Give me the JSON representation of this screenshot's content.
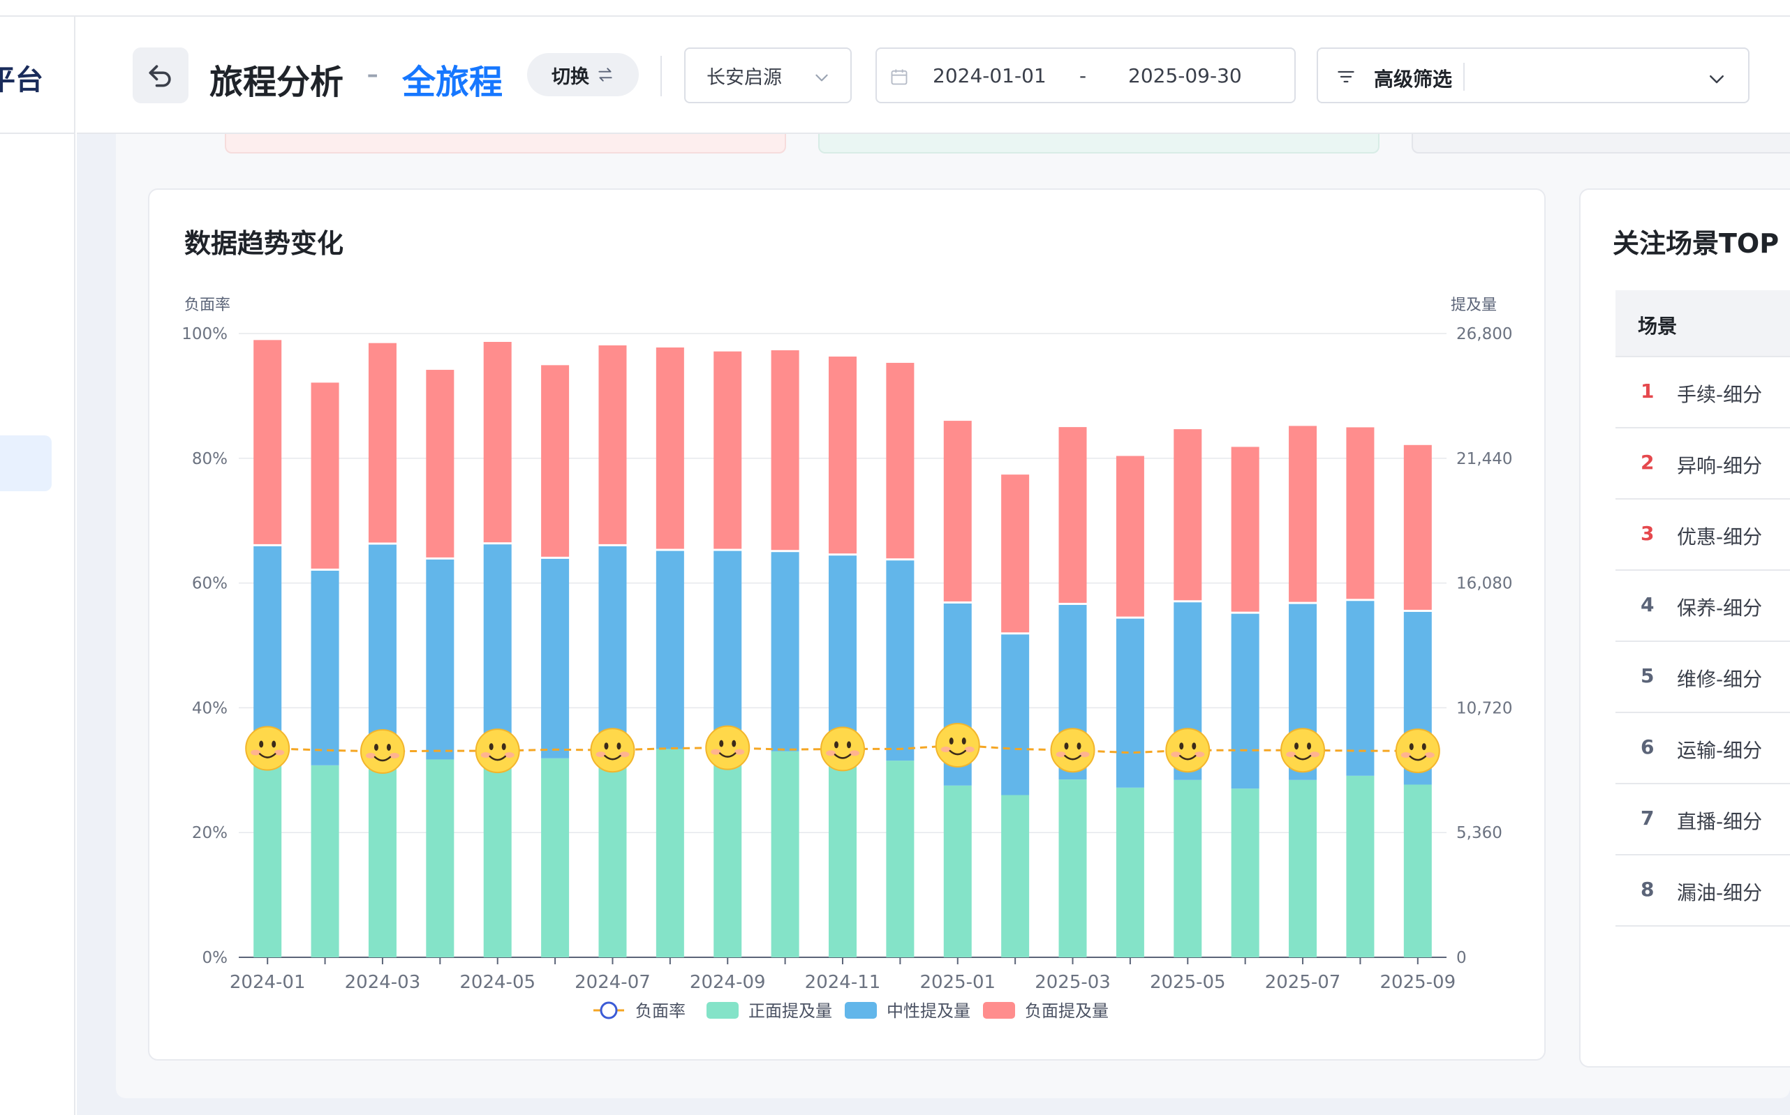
{
  "sidebar": {
    "brand": "平台"
  },
  "header": {
    "title": "旅程分析",
    "separator": "-",
    "subtitle": "全旅程",
    "switch_label": "切换",
    "brand_select": "长安启源",
    "date_start": "2024-01-01",
    "date_sep": "-",
    "date_end": "2025-09-30",
    "filter_label": "高级筛选"
  },
  "trend_card": {
    "title": "数据趋势变化"
  },
  "top_card": {
    "title": "关注场景TOP",
    "column": "场景",
    "rows": [
      {
        "rank": "1",
        "name": "手续-细分"
      },
      {
        "rank": "2",
        "name": "异响-细分"
      },
      {
        "rank": "3",
        "name": "优惠-细分"
      },
      {
        "rank": "4",
        "name": "保养-细分"
      },
      {
        "rank": "5",
        "name": "维修-细分"
      },
      {
        "rank": "6",
        "name": "运输-细分"
      },
      {
        "rank": "7",
        "name": "直播-细分"
      },
      {
        "rank": "8",
        "name": "漏油-细分"
      }
    ]
  },
  "colors": {
    "positive": "#84e3c8",
    "neutral": "#62b6ea",
    "negative": "#ff8d8d",
    "rate_line": "#f5a623",
    "rank_top3": "#e5484d",
    "rank_other": "#5b6478"
  },
  "chart_data": {
    "type": "bar",
    "stacked": true,
    "ylabel_left": "负面率",
    "ylabel_right": "提及量",
    "y_left_ticks": [
      "0%",
      "20%",
      "40%",
      "60%",
      "80%",
      "100%"
    ],
    "y_right_ticks": [
      "0",
      "5,360",
      "10,720",
      "16,080",
      "21,440",
      "26,800"
    ],
    "ylim_left": [
      0,
      100
    ],
    "ylim_right": [
      0,
      26800
    ],
    "x_tick_labels": [
      "2024-01",
      "2024-03",
      "2024-05",
      "2024-07",
      "2024-09",
      "2024-11",
      "2025-01",
      "2025-03",
      "2025-05",
      "2025-07",
      "2025-09"
    ],
    "categories": [
      "2024-01",
      "2024-02",
      "2024-03",
      "2024-04",
      "2024-05",
      "2024-06",
      "2024-07",
      "2024-08",
      "2024-09",
      "2024-10",
      "2024-11",
      "2024-12",
      "2025-01",
      "2025-02",
      "2025-03",
      "2025-04",
      "2025-05",
      "2025-06",
      "2025-07",
      "2025-08",
      "2025-09"
    ],
    "series": [
      {
        "name": "正面提及量",
        "values": [
          9050,
          8250,
          9120,
          8500,
          9150,
          8550,
          9100,
          8950,
          8900,
          8850,
          8600,
          8450,
          7380,
          6970,
          7640,
          7290,
          7620,
          7250,
          7620,
          7800,
          7420
        ]
      },
      {
        "name": "中性提及量",
        "values": [
          8700,
          8450,
          8700,
          8680,
          8680,
          8660,
          8650,
          8600,
          8650,
          8650,
          8750,
          8690,
          7910,
          6990,
          7590,
          7350,
          7720,
          7600,
          7650,
          7600,
          7510
        ]
      },
      {
        "name": "负面提及量",
        "values": [
          8860,
          8080,
          8660,
          8150,
          8700,
          8320,
          8630,
          8740,
          8570,
          8670,
          8550,
          8490,
          7850,
          6870,
          7640,
          6990,
          7440,
          7170,
          7650,
          7460,
          7170
        ]
      },
      {
        "name": "负面率",
        "type": "line",
        "values": [
          33.5,
          33.2,
          33.0,
          33.1,
          33.1,
          33.3,
          33.2,
          33.5,
          33.6,
          33.3,
          33.4,
          33.4,
          34.0,
          33.4,
          33.2,
          32.8,
          33.2,
          33.2,
          33.2,
          33.1,
          33.1
        ]
      }
    ],
    "rate_markers": [
      "2024-01",
      "2024-03",
      "2024-05",
      "2024-07",
      "2024-09",
      "2024-11",
      "2025-01",
      "2025-03",
      "2025-05",
      "2025-07",
      "2025-09"
    ],
    "legend": [
      "负面率",
      "正面提及量",
      "中性提及量",
      "负面提及量"
    ],
    "legend_position": "bottom"
  }
}
